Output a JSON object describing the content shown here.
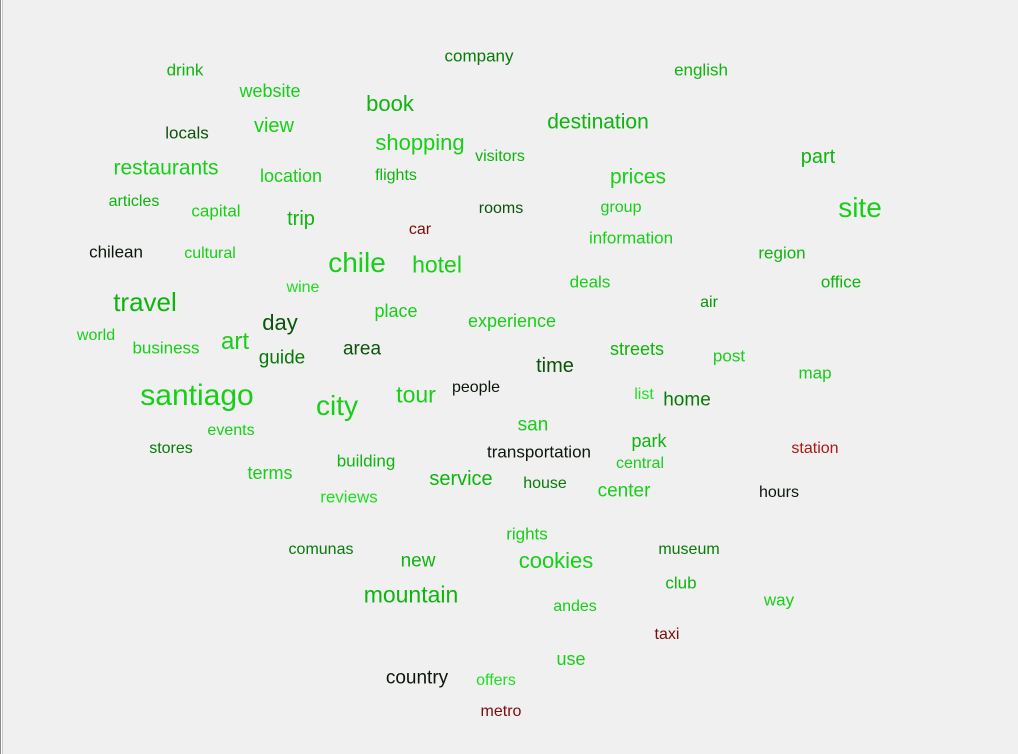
{
  "colors": {
    "background": "#f0f0f0",
    "lime": "#1ee01e",
    "bright": "#17cf17",
    "green": "#0fb40f",
    "mid": "#0a960a",
    "dark": "#087a08",
    "deep": "#0b520b",
    "black": "#0c150c",
    "maroon": "#7a0d0d",
    "red": "#b31414"
  },
  "words": [
    {
      "text": "company",
      "color": "dark"
    },
    {
      "text": "drink",
      "color": "green"
    },
    {
      "text": "english",
      "color": "green"
    },
    {
      "text": "website",
      "color": "bright"
    },
    {
      "text": "book",
      "color": "green"
    },
    {
      "text": "locals",
      "color": "deep"
    },
    {
      "text": "view",
      "color": "bright"
    },
    {
      "text": "destination",
      "color": "green"
    },
    {
      "text": "shopping",
      "color": "bright"
    },
    {
      "text": "visitors",
      "color": "green"
    },
    {
      "text": "part",
      "color": "green"
    },
    {
      "text": "restaurants",
      "color": "bright"
    },
    {
      "text": "location",
      "color": "bright"
    },
    {
      "text": "flights",
      "color": "green"
    },
    {
      "text": "prices",
      "color": "bright"
    },
    {
      "text": "articles",
      "color": "green"
    },
    {
      "text": "capital",
      "color": "bright"
    },
    {
      "text": "trip",
      "color": "green"
    },
    {
      "text": "rooms",
      "color": "deep"
    },
    {
      "text": "group",
      "color": "bright"
    },
    {
      "text": "site",
      "color": "bright"
    },
    {
      "text": "car",
      "color": "maroon"
    },
    {
      "text": "information",
      "color": "bright"
    },
    {
      "text": "chilean",
      "color": "black"
    },
    {
      "text": "cultural",
      "color": "bright"
    },
    {
      "text": "chile",
      "color": "bright"
    },
    {
      "text": "hotel",
      "color": "bright"
    },
    {
      "text": "region",
      "color": "green"
    },
    {
      "text": "deals",
      "color": "bright"
    },
    {
      "text": "office",
      "color": "green"
    },
    {
      "text": "wine",
      "color": "lime"
    },
    {
      "text": "travel",
      "color": "green"
    },
    {
      "text": "air",
      "color": "mid"
    },
    {
      "text": "place",
      "color": "bright"
    },
    {
      "text": "day",
      "color": "deep"
    },
    {
      "text": "experience",
      "color": "bright"
    },
    {
      "text": "world",
      "color": "bright"
    },
    {
      "text": "business",
      "color": "bright"
    },
    {
      "text": "art",
      "color": "bright"
    },
    {
      "text": "guide",
      "color": "dark"
    },
    {
      "text": "area",
      "color": "deep"
    },
    {
      "text": "streets",
      "color": "green"
    },
    {
      "text": "post",
      "color": "bright"
    },
    {
      "text": "time",
      "color": "deep"
    },
    {
      "text": "map",
      "color": "bright"
    },
    {
      "text": "santiago",
      "color": "bright"
    },
    {
      "text": "tour",
      "color": "bright"
    },
    {
      "text": "people",
      "color": "black"
    },
    {
      "text": "list",
      "color": "lime"
    },
    {
      "text": "home",
      "color": "dark"
    },
    {
      "text": "city",
      "color": "bright"
    },
    {
      "text": "san",
      "color": "bright"
    },
    {
      "text": "events",
      "color": "bright"
    },
    {
      "text": "park",
      "color": "green"
    },
    {
      "text": "station",
      "color": "red"
    },
    {
      "text": "stores",
      "color": "dark"
    },
    {
      "text": "transportation",
      "color": "black"
    },
    {
      "text": "central",
      "color": "bright"
    },
    {
      "text": "building",
      "color": "green"
    },
    {
      "text": "terms",
      "color": "bright"
    },
    {
      "text": "service",
      "color": "green"
    },
    {
      "text": "house",
      "color": "dark"
    },
    {
      "text": "center",
      "color": "bright"
    },
    {
      "text": "hours",
      "color": "black"
    },
    {
      "text": "reviews",
      "color": "lime"
    },
    {
      "text": "rights",
      "color": "bright"
    },
    {
      "text": "comunas",
      "color": "dark"
    },
    {
      "text": "museum",
      "color": "dark"
    },
    {
      "text": "new",
      "color": "green"
    },
    {
      "text": "cookies",
      "color": "bright"
    },
    {
      "text": "club",
      "color": "green"
    },
    {
      "text": "mountain",
      "color": "green"
    },
    {
      "text": "way",
      "color": "bright"
    },
    {
      "text": "andes",
      "color": "bright"
    },
    {
      "text": "taxi",
      "color": "maroon"
    },
    {
      "text": "use",
      "color": "bright"
    },
    {
      "text": "country",
      "color": "black"
    },
    {
      "text": "offers",
      "color": "lime"
    },
    {
      "text": "metro",
      "color": "maroon"
    }
  ]
}
